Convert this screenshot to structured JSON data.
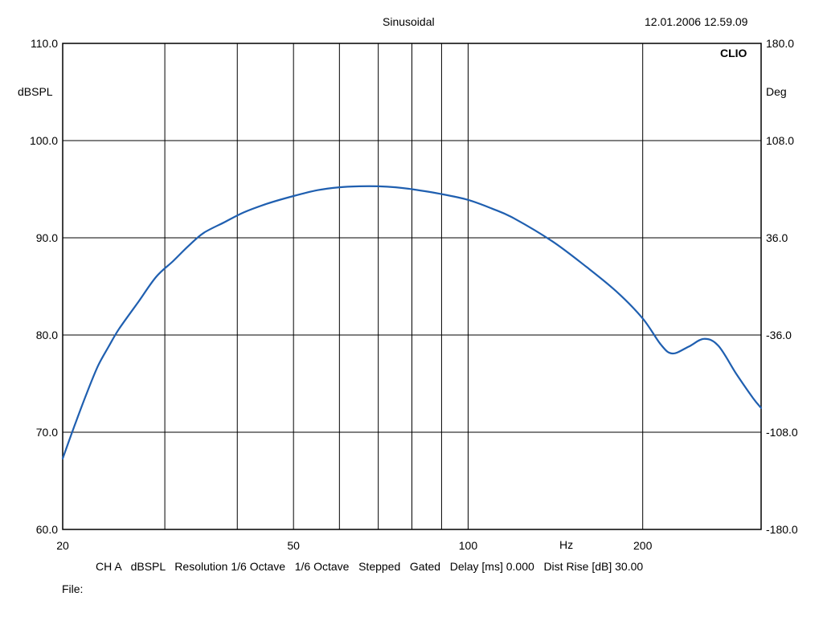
{
  "header": {
    "title": "Sinusoidal",
    "timestamp": "12.01.2006 12.59.09",
    "brand": "CLIO"
  },
  "footer": {
    "status_line": "CH A   dBSPL   Resolution 1/6 Octave   1/6 Octave   Stepped   Gated   Delay [ms] 0.000   Dist Rise [dB] 30.00",
    "file_label": "File:"
  },
  "chart_data": {
    "type": "line",
    "title": "Sinusoidal",
    "xlabel": "Hz",
    "ylabel": "dBSPL",
    "y2label": "Deg",
    "xscale": "log",
    "xlim": [
      20,
      320
    ],
    "ylim": [
      60,
      110
    ],
    "y2lim": [
      -180,
      180
    ],
    "x_ticks": [
      20,
      50,
      100,
      200
    ],
    "x_tick_labels": [
      "20",
      "50",
      "100",
      "200"
    ],
    "y_ticks": [
      60,
      70,
      80,
      90,
      100,
      110
    ],
    "y_tick_labels": [
      "60.0",
      "70.0",
      "80.0",
      "90.0",
      "100.0",
      "110.0"
    ],
    "y2_ticks": [
      -180,
      -108,
      -36,
      36,
      108,
      180
    ],
    "y2_tick_labels": [
      "-180.0",
      "-108.0",
      "-36.0",
      "36.0",
      "108.0",
      "180.0"
    ],
    "grid": true,
    "vertical_gridlines_hz": [
      30,
      40,
      50,
      60,
      70,
      80,
      90,
      100,
      200
    ],
    "line_color": "#1f5fb0",
    "series": [
      {
        "values_x": [
          20,
          21,
          22,
          23,
          24,
          25,
          27,
          29,
          31,
          33,
          35,
          38,
          41,
          45,
          50,
          55,
          60,
          65,
          70,
          75,
          80,
          90,
          100,
          110,
          120,
          140,
          160,
          180,
          200,
          215,
          225,
          240,
          255,
          270,
          290,
          310,
          320
        ],
        "values_y": [
          67.3,
          70.8,
          74.0,
          76.8,
          78.8,
          80.6,
          83.4,
          86.0,
          87.6,
          89.2,
          90.5,
          91.6,
          92.6,
          93.5,
          94.3,
          94.9,
          95.2,
          95.3,
          95.3,
          95.2,
          95.0,
          94.5,
          93.9,
          93.0,
          92.0,
          89.6,
          87.0,
          84.5,
          81.7,
          79.0,
          78.1,
          78.8,
          79.6,
          78.9,
          76.0,
          73.5,
          72.5
        ]
      }
    ]
  }
}
